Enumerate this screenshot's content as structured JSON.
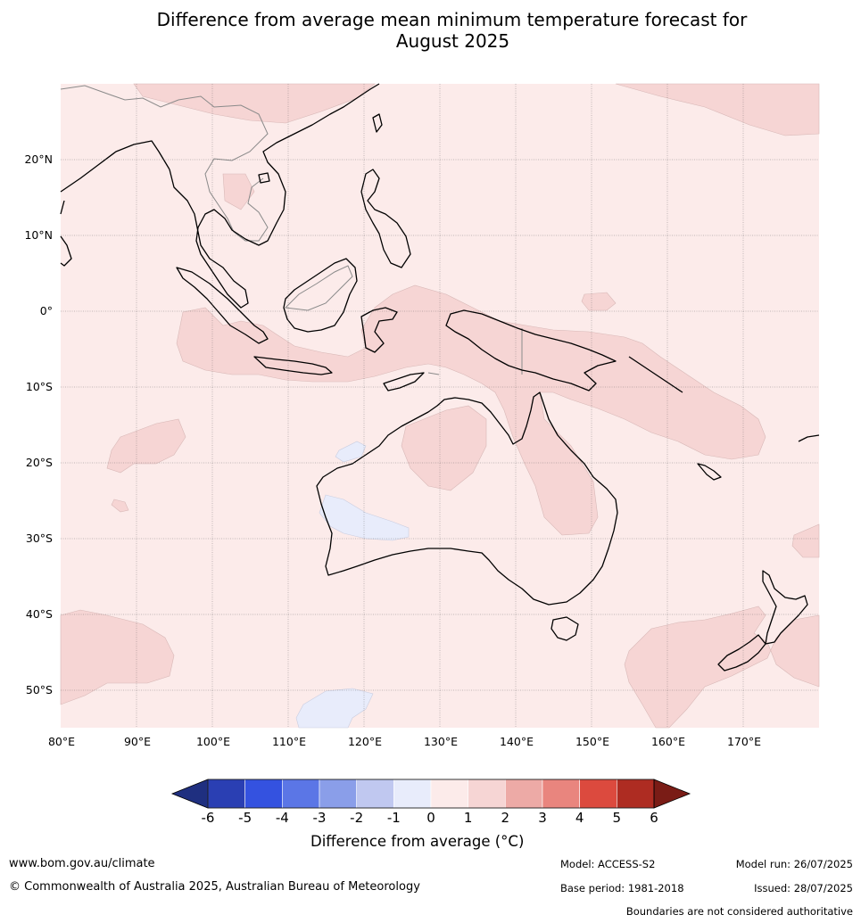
{
  "title_line1": "Difference from average mean minimum temperature forecast for",
  "title_line2": "August 2025",
  "map": {
    "lon_ticks": [
      "80°E",
      "90°E",
      "100°E",
      "110°E",
      "120°E",
      "130°E",
      "140°E",
      "150°E",
      "160°E",
      "170°E"
    ],
    "lat_ticks": [
      "20°N",
      "10°N",
      "0°",
      "10°S",
      "20°S",
      "30°S",
      "40°S",
      "50°S"
    ]
  },
  "colorbar": {
    "title": "Difference from average (°C)",
    "ticks": [
      "-6",
      "-5",
      "-4",
      "-3",
      "-2",
      "-1",
      "0",
      "1",
      "2",
      "3",
      "4",
      "5",
      "6"
    ],
    "colors": [
      "#1f2f80",
      "#2a3fb3",
      "#3452e0",
      "#5b76e6",
      "#8a9ee9",
      "#c0c8f0",
      "#e8ecfb",
      "#fcebea",
      "#f6d5d4",
      "#edaaa6",
      "#e9857e",
      "#dc4a3e",
      "#ae2c22",
      "#7a1c16"
    ]
  },
  "footer": {
    "website": "www.bom.gov.au/climate",
    "copyright": "© Commonwealth of Australia 2025, Australian Bureau of Meteorology",
    "model": "Model: ACCESS-S2",
    "base_period": "Base period: 1981-2018",
    "model_run": "Model run: 26/07/2025",
    "issued": "Issued: 28/07/2025",
    "disclaimer": "Boundaries are not considered authoritative"
  }
}
